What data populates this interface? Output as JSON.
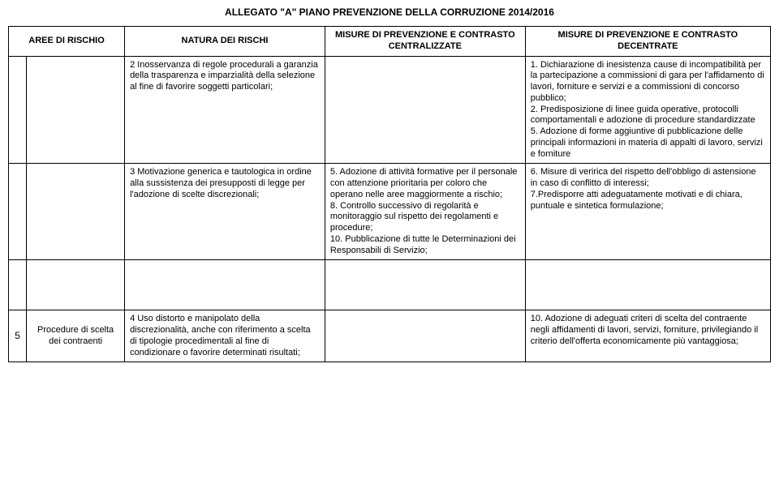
{
  "title": "ALLEGATO \"A\" PIANO PREVENZIONE DELLA CORRUZIONE 2014/2016",
  "headers": {
    "area": "AREE DI RISCHIO",
    "risk": "NATURA DEI RISCHI",
    "central": "MISURE DI PREVENZIONE E CONTRASTO  CENTRALIZZATE",
    "decentral": "MISURE DI PREVENZIONE E CONTRASTO DECENTRATE"
  },
  "rows": [
    {
      "num": "",
      "area": "",
      "risk": "2 Inosservanza di regole procedurali a garanzia della trasparenza e imparzialità della selezione al fine di favorire soggetti particolari;",
      "central": "",
      "decentral": "1. Dichiarazione di inesistenza cause di incompatibilità per la partecipazione a commissioni di gara per l'affidamento di lavori, forniture e servizi e a commissioni di concorso pubblico;\n2. Predisposizione di linee guida operative, protocolli comportamentali e adozione di procedure standardizzate\n5. Adozione di forme aggiuntive di  pubblicazione delle  principali informazioni in materia di appalti di lavoro, servizi e forniture"
    },
    {
      "num": "",
      "area": "",
      "risk": "3 Motivazione generica e tautologica in ordine alla sussistenza dei presupposti di legge per l'adozione di scelte discrezionali;",
      "central": " 5. Adozione di attività formative per il personale con attenzione prioritaria per coloro che  operano nelle aree maggiormente a rischio;\n8. Controllo successivo di regolarità e monitoraggio sul rispetto dei regolamenti e procedure;\n10. Pubblicazione di tutte le Determinazioni dei Responsabili di Servizio;",
      "decentral": "6. Misure di veririca del rispetto dell'obbligo di astensione in caso di conflitto di interessi;\n7.Predisporre atti adeguatamente motivati e di chiara, puntuale e sintetica formulazione;"
    },
    {
      "num": "5",
      "area": "Procedure di scelta dei contraenti",
      "risk": "4 Uso distorto e manipolato della discrezionalità, anche con riferimento a scelta di tipologie procedimentali al fine di condizionare o favorire determinati risultati;",
      "central": "",
      "decentral": "10. Adozione di adeguati criteri di scelta del contraente negli affidamenti di lavori, servizi, forniture, privilegiando il criterio dell'offerta economicamente più vantaggiosa;"
    }
  ]
}
